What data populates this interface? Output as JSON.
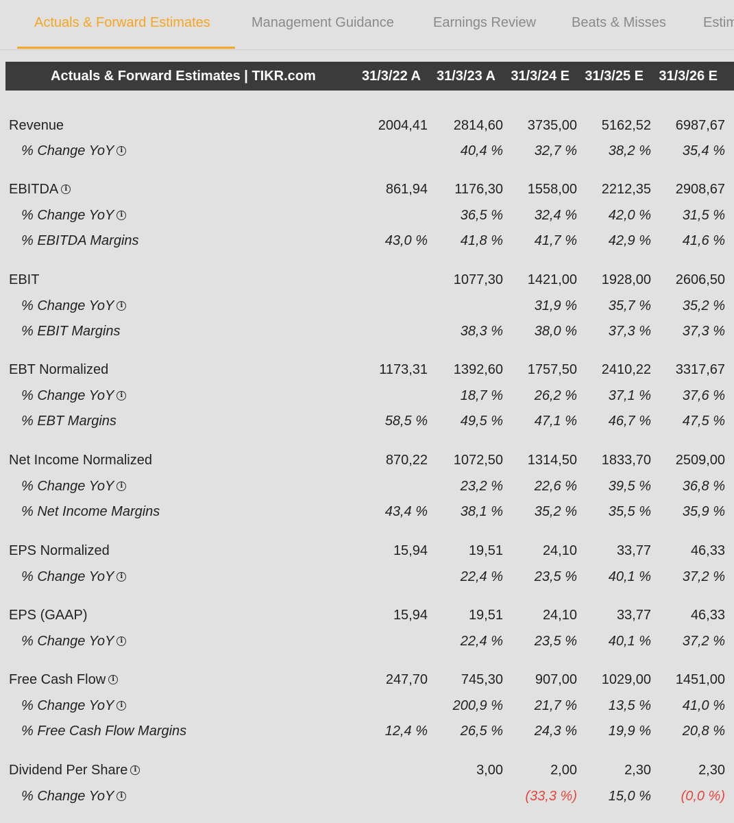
{
  "tabs": [
    {
      "label": "Actuals & Forward Estimates",
      "active": true
    },
    {
      "label": "Management Guidance",
      "active": false
    },
    {
      "label": "Earnings Review",
      "active": false
    },
    {
      "label": "Beats & Misses",
      "active": false
    },
    {
      "label": "Estimates",
      "active": false
    }
  ],
  "table": {
    "title": "Actuals & Forward Estimates | TIKR.com",
    "columns": [
      "31/3/22 A",
      "31/3/23 A",
      "31/3/24 E",
      "31/3/25 E",
      "31/3/26 E"
    ],
    "rows": [
      {
        "label": "Revenue",
        "sub": false,
        "info": false,
        "values": [
          "2004,41",
          "2814,60",
          "3735,00",
          "5162,52",
          "6987,67"
        ]
      },
      {
        "label": "% Change YoY",
        "sub": true,
        "info": true,
        "values": [
          "",
          "40,4 %",
          "32,7 %",
          "38,2 %",
          "35,4 %"
        ]
      },
      {
        "label": "EBITDA",
        "sub": false,
        "info": true,
        "values": [
          "861,94",
          "1176,30",
          "1558,00",
          "2212,35",
          "2908,67"
        ]
      },
      {
        "label": "% Change YoY",
        "sub": true,
        "info": true,
        "values": [
          "",
          "36,5 %",
          "32,4 %",
          "42,0 %",
          "31,5 %"
        ]
      },
      {
        "label": "% EBITDA Margins",
        "sub": true,
        "info": false,
        "values": [
          "43,0 %",
          "41,8 %",
          "41,7 %",
          "42,9 %",
          "41,6 %"
        ]
      },
      {
        "label": "EBIT",
        "sub": false,
        "info": false,
        "values": [
          "",
          "1077,30",
          "1421,00",
          "1928,00",
          "2606,50"
        ]
      },
      {
        "label": "% Change YoY",
        "sub": true,
        "info": true,
        "values": [
          "",
          "",
          "31,9 %",
          "35,7 %",
          "35,2 %"
        ]
      },
      {
        "label": "% EBIT Margins",
        "sub": true,
        "info": false,
        "values": [
          "",
          "38,3 %",
          "38,0 %",
          "37,3 %",
          "37,3 %"
        ]
      },
      {
        "label": "EBT Normalized",
        "sub": false,
        "info": false,
        "values": [
          "1173,31",
          "1392,60",
          "1757,50",
          "2410,22",
          "3317,67"
        ]
      },
      {
        "label": "% Change YoY",
        "sub": true,
        "info": true,
        "values": [
          "",
          "18,7 %",
          "26,2 %",
          "37,1 %",
          "37,6 %"
        ]
      },
      {
        "label": "% EBT Margins",
        "sub": true,
        "info": false,
        "values": [
          "58,5 %",
          "49,5 %",
          "47,1 %",
          "46,7 %",
          "47,5 %"
        ]
      },
      {
        "label": "Net Income Normalized",
        "sub": false,
        "info": false,
        "values": [
          "870,22",
          "1072,50",
          "1314,50",
          "1833,70",
          "2509,00"
        ]
      },
      {
        "label": "% Change YoY",
        "sub": true,
        "info": true,
        "values": [
          "",
          "23,2 %",
          "22,6 %",
          "39,5 %",
          "36,8 %"
        ]
      },
      {
        "label": "% Net Income Margins",
        "sub": true,
        "info": false,
        "values": [
          "43,4 %",
          "38,1 %",
          "35,2 %",
          "35,5 %",
          "35,9 %"
        ]
      },
      {
        "label": "EPS Normalized",
        "sub": false,
        "info": false,
        "values": [
          "15,94",
          "19,51",
          "24,10",
          "33,77",
          "46,33"
        ]
      },
      {
        "label": "% Change YoY",
        "sub": true,
        "info": true,
        "values": [
          "",
          "22,4 %",
          "23,5 %",
          "40,1 %",
          "37,2 %"
        ]
      },
      {
        "label": "EPS (GAAP)",
        "sub": false,
        "info": false,
        "values": [
          "15,94",
          "19,51",
          "24,10",
          "33,77",
          "46,33"
        ]
      },
      {
        "label": "% Change YoY",
        "sub": true,
        "info": true,
        "values": [
          "",
          "22,4 %",
          "23,5 %",
          "40,1 %",
          "37,2 %"
        ]
      },
      {
        "label": "Free Cash Flow",
        "sub": false,
        "info": true,
        "values": [
          "247,70",
          "745,30",
          "907,00",
          "1029,00",
          "1451,00"
        ]
      },
      {
        "label": "% Change YoY",
        "sub": true,
        "info": true,
        "values": [
          "",
          "200,9 %",
          "21,7 %",
          "13,5 %",
          "41,0 %"
        ]
      },
      {
        "label": "% Free Cash Flow Margins",
        "sub": true,
        "info": false,
        "values": [
          "12,4 %",
          "26,5 %",
          "24,3 %",
          "19,9 %",
          "20,8 %"
        ]
      },
      {
        "label": "Dividend Per Share",
        "sub": false,
        "info": true,
        "values": [
          "",
          "3,00",
          "2,00",
          "2,30",
          "2,30"
        ]
      },
      {
        "label": "% Change YoY",
        "sub": true,
        "info": true,
        "values": [
          "",
          "",
          "(33,3 %)",
          "15,0 %",
          "(0,0 %)"
        ]
      }
    ]
  },
  "colors": {
    "accent": "#f5a623",
    "header_bg": "#3b3b3b",
    "negative": "#e8453c",
    "background": "#e1e1e1"
  }
}
